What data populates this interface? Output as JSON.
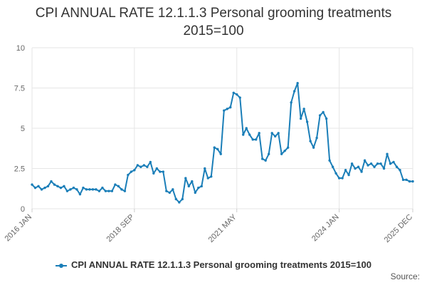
{
  "colors": {
    "series": "#1a7eb8",
    "grid": "#e6e6e6",
    "axis_text": "#666666",
    "title_text": "#333333"
  },
  "footer": {
    "source": "Source:"
  },
  "chart_data": {
    "type": "line",
    "title_line1": "CPI ANNUAL RATE 12.1.1.3 Personal grooming treatments",
    "title_line2": "2015=100",
    "legend": "CPI ANNUAL RATE 12.1.1.3 Personal grooming treatments 2015=100",
    "ylim": [
      0,
      10
    ],
    "yticks": [
      0,
      2.5,
      5,
      7.5,
      10
    ],
    "ytick_labels": [
      "0",
      "2.5",
      "5",
      "7.5",
      "10"
    ],
    "xticks": [
      {
        "label": "2016 JAN",
        "index": 0
      },
      {
        "label": "2018 SEP",
        "index": 32
      },
      {
        "label": "2021 MAY",
        "index": 64
      },
      {
        "label": "2024 JAN",
        "index": 96
      },
      {
        "label": "2025 DEC",
        "index": 119
      }
    ],
    "grid": true,
    "series": [
      {
        "name": "CPI ANNUAL RATE 12.1.1.3 Personal grooming treatments 2015=100",
        "values": [
          1.5,
          1.3,
          1.4,
          1.2,
          1.3,
          1.4,
          1.7,
          1.5,
          1.4,
          1.3,
          1.4,
          1.1,
          1.2,
          1.3,
          1.2,
          0.9,
          1.3,
          1.2,
          1.2,
          1.2,
          1.2,
          1.1,
          1.3,
          1.1,
          1.1,
          1.1,
          1.5,
          1.4,
          1.2,
          1.1,
          2.1,
          2.3,
          2.4,
          2.7,
          2.6,
          2.7,
          2.6,
          2.9,
          2.2,
          2.5,
          2.3,
          2.3,
          1.1,
          1.0,
          1.2,
          0.6,
          0.4,
          0.6,
          1.9,
          1.4,
          1.7,
          1.0,
          1.3,
          1.4,
          2.5,
          1.9,
          2.0,
          3.8,
          3.7,
          3.4,
          6.1,
          6.2,
          6.3,
          7.2,
          7.1,
          6.9,
          4.6,
          5.0,
          4.6,
          4.3,
          4.3,
          4.7,
          3.1,
          3.0,
          3.4,
          4.7,
          4.5,
          4.7,
          3.4,
          3.6,
          3.8,
          6.6,
          7.3,
          7.8,
          5.6,
          6.2,
          5.4,
          4.2,
          3.8,
          4.4,
          5.8,
          6.0,
          5.6,
          3.0,
          2.6,
          2.2,
          1.9,
          1.9,
          2.4,
          2.1,
          2.8,
          2.5,
          2.6,
          2.3,
          3.0,
          2.7,
          2.8,
          2.6,
          2.8,
          2.8,
          2.5,
          3.4,
          2.8,
          2.9,
          2.6,
          2.4,
          1.8,
          1.8,
          1.7,
          1.7
        ]
      }
    ]
  }
}
